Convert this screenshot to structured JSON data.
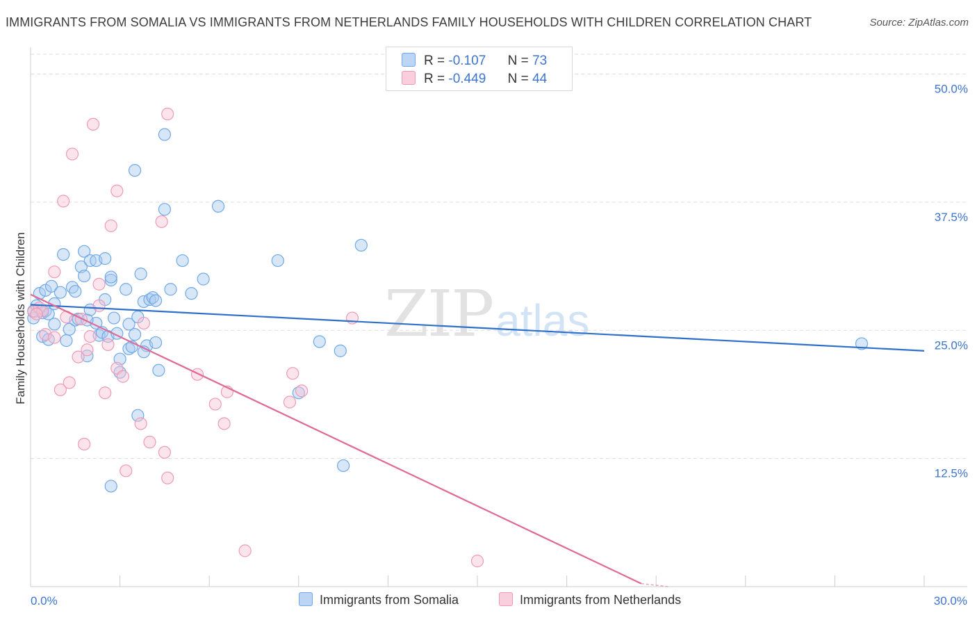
{
  "title": "IMMIGRANTS FROM SOMALIA VS IMMIGRANTS FROM NETHERLANDS FAMILY HOUSEHOLDS WITH CHILDREN CORRELATION CHART",
  "source": "Source: ZipAtlas.com",
  "watermark": {
    "zip": "ZIP",
    "atlas": "atlas"
  },
  "legend": {
    "rows": [
      {
        "r_label": "R =",
        "r_value": "-0.107",
        "n_label": "N =",
        "n_value": "73"
      },
      {
        "r_label": "R =",
        "r_value": "-0.449",
        "n_label": "N =",
        "n_value": "44"
      }
    ]
  },
  "chart_data": {
    "type": "scatter",
    "ylabel": "Family Households with Children",
    "xlim": [
      0,
      30
    ],
    "ylim": [
      0,
      52
    ],
    "x_ticks": [
      "0.0%",
      "30.0%"
    ],
    "y_ticks": [
      {
        "value": 12.5,
        "label": "12.5%"
      },
      {
        "value": 25.0,
        "label": "25.0%"
      },
      {
        "value": 37.5,
        "label": "37.5%"
      },
      {
        "value": 50.0,
        "label": "50.0%"
      }
    ],
    "grid": "horizontal-dashed",
    "series": [
      {
        "name": "Immigrants from Somalia",
        "color": "#6fa8e8",
        "fill": "#a9c9f0",
        "trend": {
          "x": [
            0,
            30
          ],
          "y": [
            27.5,
            23.0
          ],
          "color": "#2f6fcc"
        },
        "points": [
          [
            0.1,
            26.2
          ],
          [
            0.2,
            27.4
          ],
          [
            0.3,
            28.6
          ],
          [
            0.4,
            26.7
          ],
          [
            0.4,
            24.4
          ],
          [
            0.5,
            28.9
          ],
          [
            0.5,
            26.9
          ],
          [
            0.6,
            26.6
          ],
          [
            0.6,
            24.1
          ],
          [
            0.7,
            29.3
          ],
          [
            0.8,
            25.6
          ],
          [
            0.8,
            27.6
          ],
          [
            1.0,
            28.7
          ],
          [
            1.1,
            32.4
          ],
          [
            1.2,
            24.0
          ],
          [
            1.3,
            25.1
          ],
          [
            1.4,
            29.2
          ],
          [
            1.5,
            28.8
          ],
          [
            1.5,
            26.0
          ],
          [
            1.6,
            26.1
          ],
          [
            1.7,
            31.2
          ],
          [
            1.8,
            32.7
          ],
          [
            1.8,
            30.3
          ],
          [
            1.9,
            22.5
          ],
          [
            2.0,
            31.8
          ],
          [
            2.0,
            27.0
          ],
          [
            2.2,
            25.7
          ],
          [
            2.2,
            31.8
          ],
          [
            2.3,
            24.5
          ],
          [
            2.4,
            24.8
          ],
          [
            2.5,
            32.0
          ],
          [
            2.5,
            28.0
          ],
          [
            2.6,
            24.4
          ],
          [
            2.7,
            29.9
          ],
          [
            2.7,
            30.2
          ],
          [
            2.7,
            9.8
          ],
          [
            2.8,
            26.2
          ],
          [
            2.9,
            24.7
          ],
          [
            3.0,
            22.2
          ],
          [
            3.0,
            20.9
          ],
          [
            3.2,
            29.0
          ],
          [
            3.3,
            23.2
          ],
          [
            3.3,
            25.6
          ],
          [
            3.4,
            23.4
          ],
          [
            3.5,
            24.6
          ],
          [
            3.5,
            40.6
          ],
          [
            3.6,
            26.3
          ],
          [
            3.6,
            16.7
          ],
          [
            3.7,
            30.5
          ],
          [
            3.8,
            27.8
          ],
          [
            3.9,
            23.5
          ],
          [
            4.0,
            28.0
          ],
          [
            4.1,
            28.2
          ],
          [
            4.2,
            27.9
          ],
          [
            4.2,
            23.8
          ],
          [
            4.3,
            21.1
          ],
          [
            4.5,
            44.1
          ],
          [
            4.5,
            36.8
          ],
          [
            4.7,
            29.0
          ],
          [
            5.1,
            31.8
          ],
          [
            5.4,
            28.6
          ],
          [
            5.8,
            30.0
          ],
          [
            6.3,
            37.1
          ],
          [
            8.3,
            31.8
          ],
          [
            9.7,
            23.9
          ],
          [
            10.4,
            23.0
          ],
          [
            10.5,
            11.8
          ],
          [
            11.1,
            33.3
          ],
          [
            27.9,
            23.7
          ],
          [
            0.1,
            26.9
          ],
          [
            1.9,
            26.0
          ],
          [
            9.0,
            18.9
          ],
          [
            3.8,
            22.9
          ]
        ]
      },
      {
        "name": "Immigrants from Netherlands",
        "color": "#ee9ab6",
        "fill": "#f7c4d5",
        "trend": {
          "x": [
            0,
            20.5
          ],
          "y": [
            28.5,
            0.3
          ],
          "color": "#e06a95"
        },
        "points": [
          [
            0.1,
            26.8
          ],
          [
            0.3,
            27.2
          ],
          [
            0.4,
            26.9
          ],
          [
            0.5,
            24.6
          ],
          [
            0.8,
            24.3
          ],
          [
            0.8,
            30.7
          ],
          [
            1.0,
            19.2
          ],
          [
            1.1,
            37.6
          ],
          [
            1.2,
            26.3
          ],
          [
            1.3,
            19.9
          ],
          [
            1.4,
            42.2
          ],
          [
            1.6,
            22.4
          ],
          [
            1.7,
            26.1
          ],
          [
            1.8,
            13.9
          ],
          [
            1.9,
            23.1
          ],
          [
            2.0,
            24.4
          ],
          [
            2.1,
            45.1
          ],
          [
            2.3,
            27.4
          ],
          [
            2.3,
            29.5
          ],
          [
            2.5,
            18.9
          ],
          [
            2.6,
            23.6
          ],
          [
            2.7,
            35.2
          ],
          [
            2.9,
            21.3
          ],
          [
            2.9,
            38.6
          ],
          [
            3.1,
            20.5
          ],
          [
            3.2,
            11.3
          ],
          [
            3.7,
            15.9
          ],
          [
            3.8,
            25.7
          ],
          [
            4.0,
            14.1
          ],
          [
            4.4,
            35.6
          ],
          [
            4.5,
            13.1
          ],
          [
            4.6,
            10.6
          ],
          [
            4.6,
            46.1
          ],
          [
            5.6,
            20.7
          ],
          [
            6.2,
            17.8
          ],
          [
            6.5,
            15.9
          ],
          [
            6.6,
            19.0
          ],
          [
            7.2,
            3.5
          ],
          [
            8.7,
            18.0
          ],
          [
            8.8,
            20.8
          ],
          [
            9.1,
            19.1
          ],
          [
            10.8,
            26.2
          ],
          [
            15.0,
            2.5
          ],
          [
            0.2,
            26.6
          ]
        ]
      }
    ]
  },
  "bottom_legend": [
    {
      "label": "Immigrants from Somalia"
    },
    {
      "label": "Immigrants from Netherlands"
    }
  ]
}
